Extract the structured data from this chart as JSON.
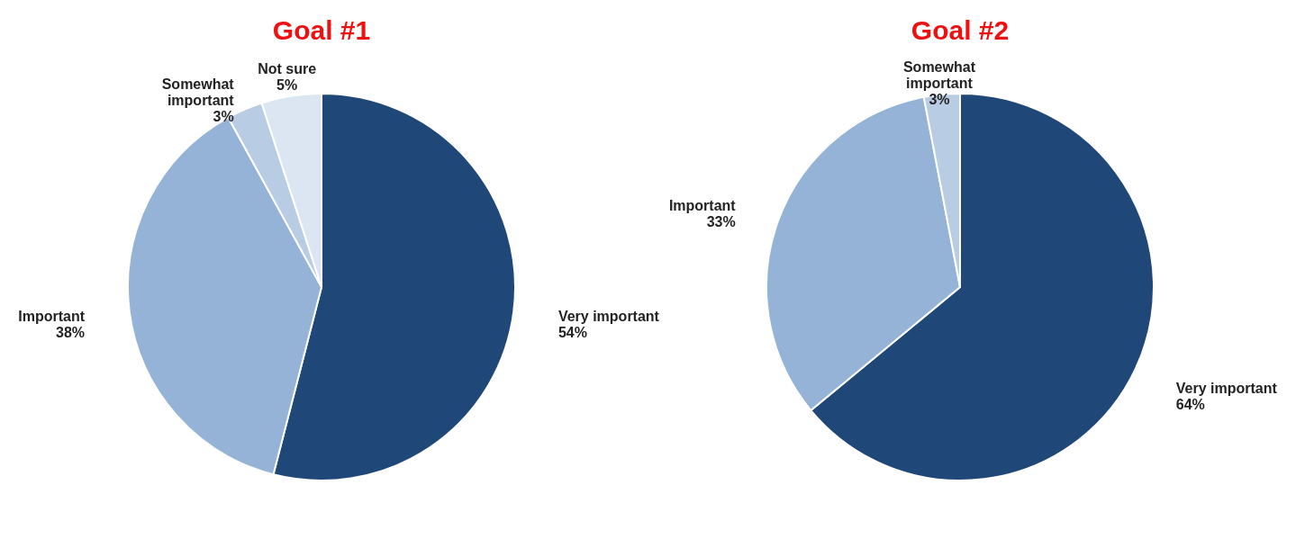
{
  "chart_data": [
    {
      "type": "pie",
      "title": "Goal #1",
      "categories": [
        "Very important",
        "Important",
        "Somewhat important",
        "Not sure"
      ],
      "values": [
        54,
        38,
        3,
        5
      ],
      "colors": [
        "#1f4878",
        "#95b3d7",
        "#b8cce4",
        "#dce6f2"
      ],
      "value_labels": [
        "54%",
        "38%",
        "3%",
        "5%"
      ],
      "legend": false
    },
    {
      "type": "pie",
      "title": "Goal #2",
      "categories": [
        "Very important",
        "Important",
        "Somewhat important"
      ],
      "values": [
        64,
        33,
        3
      ],
      "colors": [
        "#1f4878",
        "#95b3d7",
        "#b8cce4"
      ],
      "value_labels": [
        "64%",
        "33%",
        "3%"
      ],
      "legend": false
    }
  ]
}
